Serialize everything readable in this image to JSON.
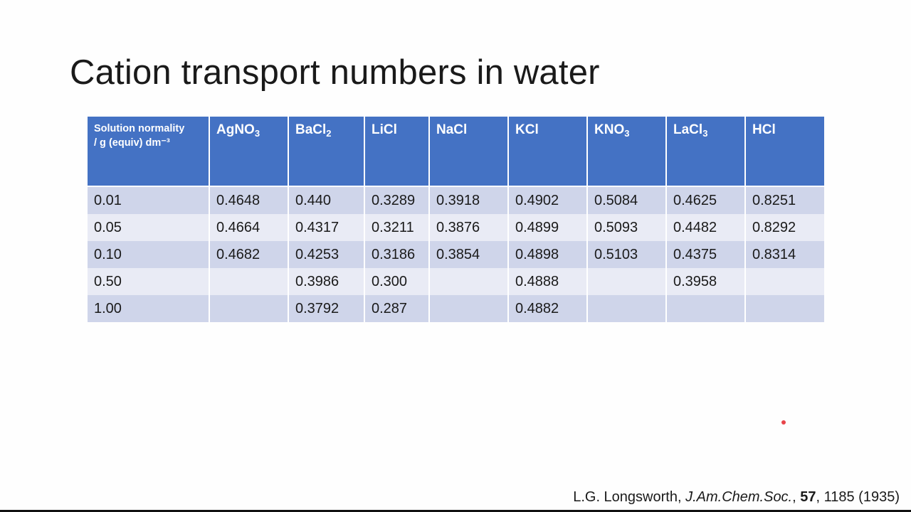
{
  "slide": {
    "title": "Cation transport numbers in water"
  },
  "table": {
    "header_first": {
      "line1": "Solution normality",
      "line2": "/ g (equiv) dm⁻³"
    },
    "headers": [
      {
        "base": "AgNO",
        "sub": "3"
      },
      {
        "base": "BaCl",
        "sub": "2"
      },
      {
        "base": "LiCl",
        "sub": ""
      },
      {
        "base": "NaCl",
        "sub": ""
      },
      {
        "base": "KCl",
        "sub": ""
      },
      {
        "base": "KNO",
        "sub": "3"
      },
      {
        "base": "LaCl",
        "sub": "3"
      },
      {
        "base": "HCl",
        "sub": ""
      }
    ],
    "rows": [
      [
        "0.01",
        "0.4648",
        "0.440",
        "0.3289",
        "0.3918",
        "0.4902",
        "0.5084",
        "0.4625",
        "0.8251"
      ],
      [
        "0.05",
        "0.4664",
        "0.4317",
        "0.3211",
        "0.3876",
        "0.4899",
        "0.5093",
        "0.4482",
        "0.8292"
      ],
      [
        "0.10",
        "0.4682",
        "0.4253",
        "0.3186",
        "0.3854",
        "0.4898",
        "0.5103",
        "0.4375",
        "0.8314"
      ],
      [
        "0.50",
        "",
        "0.3986",
        "0.300",
        "",
        "0.4888",
        "",
        "0.3958",
        ""
      ],
      [
        "1.00",
        "",
        "0.3792",
        "0.287",
        "",
        "0.4882",
        "",
        "",
        ""
      ]
    ]
  },
  "citation": {
    "author": "L.G. Longsworth, ",
    "journal": "J.Am.Chem.Soc.",
    "sep": ", ",
    "volume": "57",
    "rest": ", 1185 (1935)"
  },
  "colors": {
    "header_bg": "#4472c4",
    "row_odd": "#cfd5ea",
    "row_even": "#e9ebf5",
    "pointer_dot": "#e8444a"
  }
}
